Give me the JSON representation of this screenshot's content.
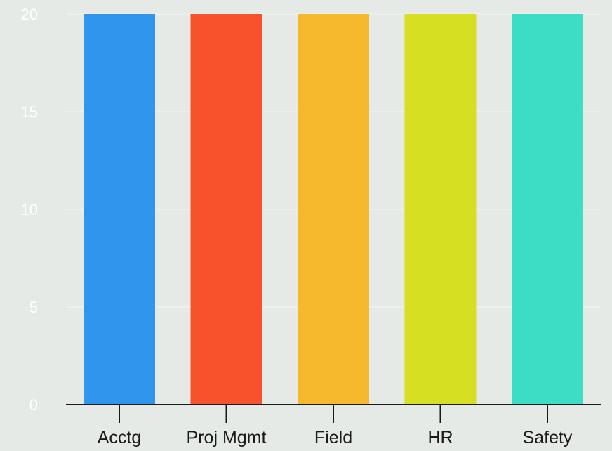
{
  "chart_data": {
    "type": "bar",
    "categories": [
      "Acctg",
      "Proj Mgmt",
      "Field",
      "HR",
      "Safety"
    ],
    "values": [
      20,
      20,
      20,
      20,
      20
    ],
    "colors": [
      "#3095ec",
      "#f8522c",
      "#f6b82d",
      "#d7df23",
      "#3ddcc4"
    ],
    "title": "",
    "xlabel": "",
    "ylabel": "",
    "ylim": [
      0,
      20
    ],
    "yticks": [
      0,
      5,
      10,
      15,
      20
    ],
    "grid": true,
    "legend": "none"
  }
}
